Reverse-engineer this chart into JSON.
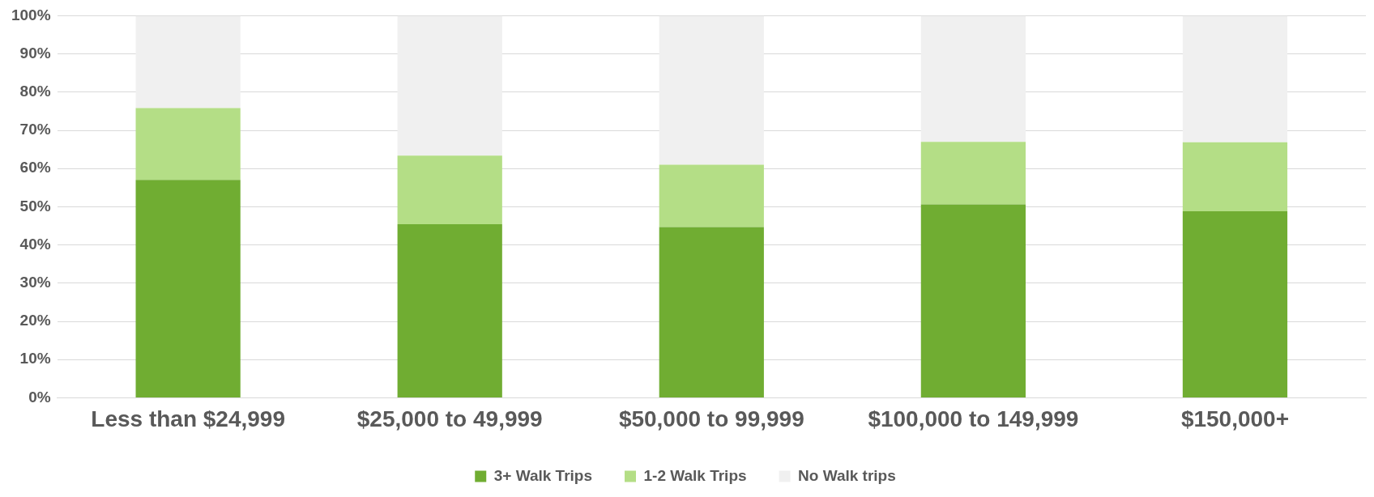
{
  "chart_data": {
    "type": "bar",
    "stacked": true,
    "categories": [
      "Less than $24,999",
      "$25,000 to 49,999",
      "$50,000 to 99,999",
      "$100,000 to 149,999",
      "$150,000+"
    ],
    "series": [
      {
        "name": "3+ Walk Trips",
        "color": "#70ad32",
        "values": [
          57,
          45.4,
          44.7,
          50.6,
          48.8
        ]
      },
      {
        "name": "1-2 Walk Trips",
        "color": "#b4de86",
        "values": [
          18.8,
          18,
          16.3,
          16.4,
          18.1
        ]
      },
      {
        "name": "No Walk trips",
        "color": "#f0f0f0",
        "values": [
          24.2,
          36.6,
          39,
          33,
          33.1
        ]
      }
    ],
    "ylim": [
      0,
      100
    ],
    "yticks": [
      {
        "value": 0,
        "label": "0%"
      },
      {
        "value": 10,
        "label": "10%"
      },
      {
        "value": 20,
        "label": "20%"
      },
      {
        "value": 30,
        "label": "30%"
      },
      {
        "value": 40,
        "label": "40%"
      },
      {
        "value": 50,
        "label": "50%"
      },
      {
        "value": 60,
        "label": "60%"
      },
      {
        "value": 70,
        "label": "70%"
      },
      {
        "value": 80,
        "label": "80%"
      },
      {
        "value": 90,
        "label": "90%"
      },
      {
        "value": 100,
        "label": "100%"
      }
    ],
    "grid": "y",
    "legend": "bottom"
  }
}
